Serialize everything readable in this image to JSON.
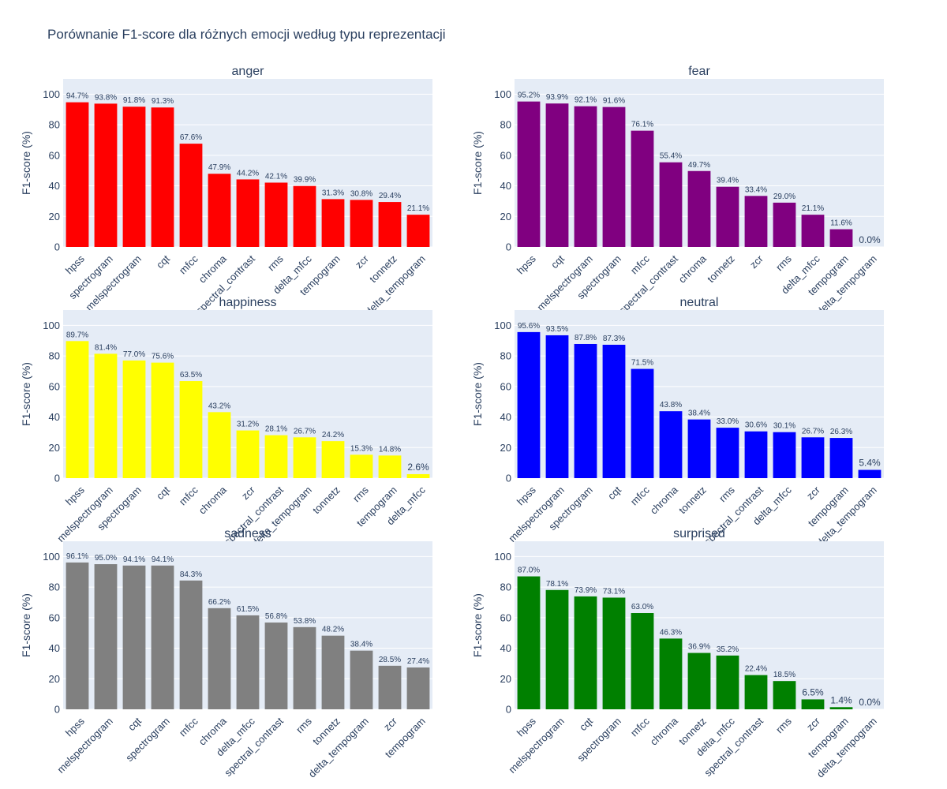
{
  "title": "Porównanie F1-score dla różnych emocji według typu reprezentacji",
  "colors": {
    "plot_bg": "#e5ecf6",
    "text": "#2a3f5f",
    "grid": "#ffffff"
  },
  "chart_data": [
    {
      "type": "bar",
      "title": "anger",
      "ylabel": "F1-score (%)",
      "ylim": [
        0,
        110
      ],
      "yticks": [
        0,
        20,
        40,
        60,
        80,
        100
      ],
      "color": "#ff0000",
      "categories": [
        "hpss",
        "spectrogram",
        "melspectrogram",
        "cqt",
        "mfcc",
        "chroma",
        "spectral_contrast",
        "rms",
        "delta_mfcc",
        "tempogram",
        "zcr",
        "tonnetz",
        "delta_tempogram"
      ],
      "values": [
        94.7,
        93.8,
        91.8,
        91.3,
        67.6,
        47.9,
        44.2,
        42.1,
        39.9,
        31.3,
        30.8,
        29.4,
        21.1
      ],
      "labels": [
        "94.7%",
        "93.8%",
        "91.8%",
        "91.3%",
        "67.6%",
        "47.9%",
        "44.2%",
        "42.1%",
        "39.9%",
        "31.3%",
        "30.8%",
        "29.4%",
        "21.1%"
      ]
    },
    {
      "type": "bar",
      "title": "fear",
      "ylabel": "F1-score (%)",
      "ylim": [
        0,
        110
      ],
      "yticks": [
        0,
        20,
        40,
        60,
        80,
        100
      ],
      "color": "#800080",
      "categories": [
        "hpss",
        "cqt",
        "melspectrogram",
        "spectrogram",
        "mfcc",
        "spectral_contrast",
        "chroma",
        "tonnetz",
        "zcr",
        "rms",
        "delta_mfcc",
        "tempogram",
        "delta_tempogram"
      ],
      "values": [
        95.2,
        93.9,
        92.1,
        91.6,
        76.1,
        55.4,
        49.7,
        39.4,
        33.4,
        29.0,
        21.1,
        11.6,
        0.0
      ],
      "labels": [
        "95.2%",
        "93.9%",
        "92.1%",
        "91.6%",
        "76.1%",
        "55.4%",
        "49.7%",
        "39.4%",
        "33.4%",
        "29.0%",
        "21.1%",
        "11.6%",
        "0.0%"
      ]
    },
    {
      "type": "bar",
      "title": "happiness",
      "ylabel": "F1-score (%)",
      "ylim": [
        0,
        110
      ],
      "yticks": [
        0,
        20,
        40,
        60,
        80,
        100
      ],
      "color": "#ffff00",
      "categories": [
        "hpss",
        "melspectrogram",
        "spectrogram",
        "cqt",
        "mfcc",
        "chroma",
        "zcr",
        "spectral_contrast",
        "delta_tempogram",
        "tonnetz",
        "rms",
        "tempogram",
        "delta_mfcc"
      ],
      "values": [
        89.7,
        81.4,
        77.0,
        75.6,
        63.5,
        43.2,
        31.2,
        28.1,
        26.7,
        24.2,
        15.3,
        14.8,
        2.6
      ],
      "labels": [
        "89.7%",
        "81.4%",
        "77.0%",
        "75.6%",
        "63.5%",
        "43.2%",
        "31.2%",
        "28.1%",
        "26.7%",
        "24.2%",
        "15.3%",
        "14.8%",
        "2.6%"
      ]
    },
    {
      "type": "bar",
      "title": "neutral",
      "ylabel": "F1-score (%)",
      "ylim": [
        0,
        110
      ],
      "yticks": [
        0,
        20,
        40,
        60,
        80,
        100
      ],
      "color": "#0000ff",
      "categories": [
        "hpss",
        "melspectrogram",
        "spectrogram",
        "cqt",
        "mfcc",
        "chroma",
        "tonnetz",
        "rms",
        "spectral_contrast",
        "delta_mfcc",
        "zcr",
        "tempogram",
        "delta_tempogram"
      ],
      "values": [
        95.6,
        93.5,
        87.8,
        87.3,
        71.5,
        43.8,
        38.4,
        33.0,
        30.6,
        30.1,
        26.7,
        26.3,
        5.4
      ],
      "labels": [
        "95.6%",
        "93.5%",
        "87.8%",
        "87.3%",
        "71.5%",
        "43.8%",
        "38.4%",
        "33.0%",
        "30.6%",
        "30.1%",
        "26.7%",
        "26.3%",
        "5.4%"
      ]
    },
    {
      "type": "bar",
      "title": "sadness",
      "ylabel": "F1-score (%)",
      "ylim": [
        0,
        110
      ],
      "yticks": [
        0,
        20,
        40,
        60,
        80,
        100
      ],
      "color": "#808080",
      "categories": [
        "hpss",
        "melspectrogram",
        "cqt",
        "spectrogram",
        "mfcc",
        "chroma",
        "delta_mfcc",
        "spectral_contrast",
        "rms",
        "tonnetz",
        "delta_tempogram",
        "zcr",
        "tempogram"
      ],
      "values": [
        96.1,
        95.0,
        94.1,
        94.1,
        84.3,
        66.2,
        61.5,
        56.8,
        53.8,
        48.2,
        38.4,
        28.5,
        27.4
      ],
      "labels": [
        "96.1%",
        "95.0%",
        "94.1%",
        "94.1%",
        "84.3%",
        "66.2%",
        "61.5%",
        "56.8%",
        "53.8%",
        "48.2%",
        "38.4%",
        "28.5%",
        "27.4%"
      ]
    },
    {
      "type": "bar",
      "title": "surprised",
      "ylabel": "F1-score (%)",
      "ylim": [
        0,
        110
      ],
      "yticks": [
        0,
        20,
        40,
        60,
        80,
        100
      ],
      "color": "#008000",
      "categories": [
        "hpss",
        "melspectrogram",
        "cqt",
        "spectrogram",
        "mfcc",
        "chroma",
        "tonnetz",
        "delta_mfcc",
        "spectral_contrast",
        "rms",
        "zcr",
        "tempogram",
        "delta_tempogram"
      ],
      "values": [
        87.0,
        78.1,
        73.9,
        73.1,
        63.0,
        46.3,
        36.9,
        35.2,
        22.4,
        18.5,
        6.5,
        1.4,
        0.0
      ],
      "labels": [
        "87.0%",
        "78.1%",
        "73.9%",
        "73.1%",
        "63.0%",
        "46.3%",
        "36.9%",
        "35.2%",
        "22.4%",
        "18.5%",
        "6.5%",
        "1.4%",
        "0.0%"
      ]
    }
  ]
}
